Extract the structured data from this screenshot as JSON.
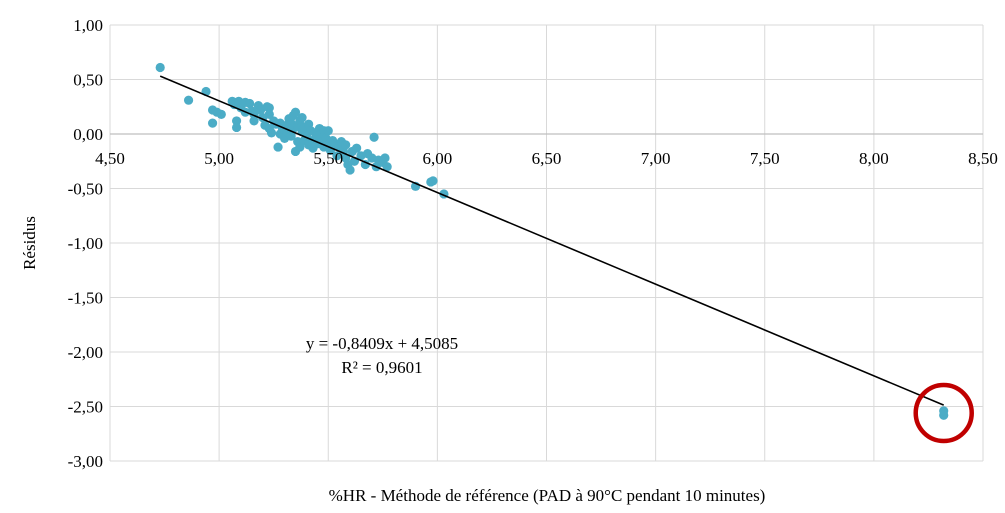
{
  "chart_data": {
    "type": "scatter",
    "xlabel": "%HR - Méthode de référence (PAD à 90°C pendant 10 minutes)",
    "ylabel": "Résidus",
    "xlim": [
      4.5,
      8.5
    ],
    "ylim": [
      -3.0,
      1.0
    ],
    "x_ticks": [
      "4,50",
      "5,00",
      "5,50",
      "6,00",
      "6,50",
      "7,00",
      "7,50",
      "8,00",
      "8,50"
    ],
    "y_ticks": [
      "1,00",
      "0,50",
      "0,00",
      "-0,50",
      "-1,00",
      "-1,50",
      "-2,00",
      "-2,50",
      "-3,00"
    ],
    "grid": "vertical and horizontal",
    "legend": "none",
    "marker_color": "#4BACC6",
    "trendline_color": "#000000",
    "outlier_marker_color": "#C00000",
    "trendline": {
      "slope": -0.8409,
      "intercept": 4.5085,
      "x_range": [
        4.73,
        8.32
      ],
      "equation": "y = -0,8409x + 4,5085",
      "r2": "R² = 0,9601"
    },
    "outlier": {
      "x": 8.32,
      "y": -2.56
    },
    "points": [
      [
        4.73,
        0.61
      ],
      [
        4.86,
        0.31
      ],
      [
        4.94,
        0.39
      ],
      [
        4.97,
        0.22
      ],
      [
        4.97,
        0.1
      ],
      [
        4.99,
        0.2
      ],
      [
        5.01,
        0.18
      ],
      [
        5.06,
        0.3
      ],
      [
        5.07,
        0.27
      ],
      [
        5.08,
        0.12
      ],
      [
        5.08,
        0.06
      ],
      [
        5.09,
        0.3
      ],
      [
        5.1,
        0.24
      ],
      [
        5.12,
        0.29
      ],
      [
        5.12,
        0.2
      ],
      [
        5.14,
        0.28
      ],
      [
        5.15,
        0.21
      ],
      [
        5.16,
        0.12
      ],
      [
        5.16,
        0.18
      ],
      [
        5.18,
        0.26
      ],
      [
        5.19,
        0.22
      ],
      [
        5.2,
        0.15
      ],
      [
        5.21,
        0.08
      ],
      [
        5.22,
        0.25
      ],
      [
        5.23,
        0.24
      ],
      [
        5.23,
        0.18
      ],
      [
        5.23,
        0.05
      ],
      [
        5.24,
        0.01
      ],
      [
        5.25,
        0.12
      ],
      [
        5.26,
        0.09
      ],
      [
        5.27,
        -0.12
      ],
      [
        5.28,
        0.0
      ],
      [
        5.28,
        0.1
      ],
      [
        5.29,
        0.05
      ],
      [
        5.3,
        -0.04
      ],
      [
        5.31,
        0.02
      ],
      [
        5.31,
        0.08
      ],
      [
        5.32,
        0.14
      ],
      [
        5.33,
        0.1
      ],
      [
        5.33,
        -0.02
      ],
      [
        5.34,
        0.17
      ],
      [
        5.34,
        0.05
      ],
      [
        5.35,
        -0.16
      ],
      [
        5.35,
        0.2
      ],
      [
        5.36,
        0.07
      ],
      [
        5.36,
        -0.07
      ],
      [
        5.37,
        0.12
      ],
      [
        5.37,
        -0.12
      ],
      [
        5.38,
        0.02
      ],
      [
        5.38,
        0.15
      ],
      [
        5.39,
        -0.06
      ],
      [
        5.39,
        0.06
      ],
      [
        5.4,
        -0.02
      ],
      [
        5.41,
        0.09
      ],
      [
        5.41,
        -0.1
      ],
      [
        5.42,
        0.03
      ],
      [
        5.43,
        -0.06
      ],
      [
        5.43,
        -0.13
      ],
      [
        5.44,
        0.01
      ],
      [
        5.44,
        -0.04
      ],
      [
        5.45,
        -0.09
      ],
      [
        5.46,
        0.05
      ],
      [
        5.46,
        -0.01
      ],
      [
        5.47,
        -0.07
      ],
      [
        5.48,
        0.03
      ],
      [
        5.48,
        -0.12
      ],
      [
        5.49,
        -0.04
      ],
      [
        5.5,
        -0.09
      ],
      [
        5.5,
        0.03
      ],
      [
        5.51,
        -0.15
      ],
      [
        5.52,
        -0.06
      ],
      [
        5.53,
        -0.1
      ],
      [
        5.54,
        -0.2
      ],
      [
        5.55,
        -0.12
      ],
      [
        5.56,
        -0.07
      ],
      [
        5.57,
        -0.16
      ],
      [
        5.58,
        -0.22
      ],
      [
        5.58,
        -0.1
      ],
      [
        5.59,
        -0.28
      ],
      [
        5.6,
        -0.33
      ],
      [
        5.61,
        -0.16
      ],
      [
        5.62,
        -0.25
      ],
      [
        5.63,
        -0.13
      ],
      [
        5.65,
        -0.2
      ],
      [
        5.67,
        -0.28
      ],
      [
        5.68,
        -0.18
      ],
      [
        5.7,
        -0.22
      ],
      [
        5.71,
        -0.03
      ],
      [
        5.72,
        -0.3
      ],
      [
        5.73,
        -0.24
      ],
      [
        5.75,
        -0.26
      ],
      [
        5.76,
        -0.22
      ],
      [
        5.77,
        -0.3
      ],
      [
        5.9,
        -0.48
      ],
      [
        5.97,
        -0.44
      ],
      [
        5.98,
        -0.43
      ],
      [
        6.03,
        -0.55
      ],
      [
        8.32,
        -2.54
      ],
      [
        8.32,
        -2.58
      ]
    ]
  }
}
